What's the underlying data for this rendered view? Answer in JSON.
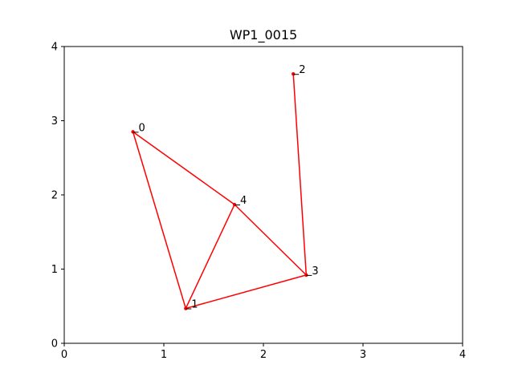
{
  "chart_data": {
    "type": "line",
    "title": "WP1_0015",
    "xlabel": "",
    "ylabel": "",
    "xlim": [
      0,
      4
    ],
    "ylim": [
      0,
      4
    ],
    "xticks": [
      "0",
      "1",
      "2",
      "3",
      "4"
    ],
    "yticks": [
      "0",
      "1",
      "2",
      "3",
      "4"
    ],
    "grid": false,
    "color": "#ff0000",
    "points": [
      {
        "label": "0",
        "x": 0.69,
        "y": 2.85
      },
      {
        "label": "1",
        "x": 1.22,
        "y": 0.47
      },
      {
        "label": "2",
        "x": 2.3,
        "y": 3.63
      },
      {
        "label": "3",
        "x": 2.43,
        "y": 0.92
      },
      {
        "label": "4",
        "x": 1.71,
        "y": 1.87
      }
    ],
    "edges": [
      [
        0,
        1
      ],
      [
        1,
        3
      ],
      [
        3,
        2
      ],
      [
        0,
        4
      ],
      [
        4,
        3
      ],
      [
        1,
        4
      ]
    ]
  }
}
